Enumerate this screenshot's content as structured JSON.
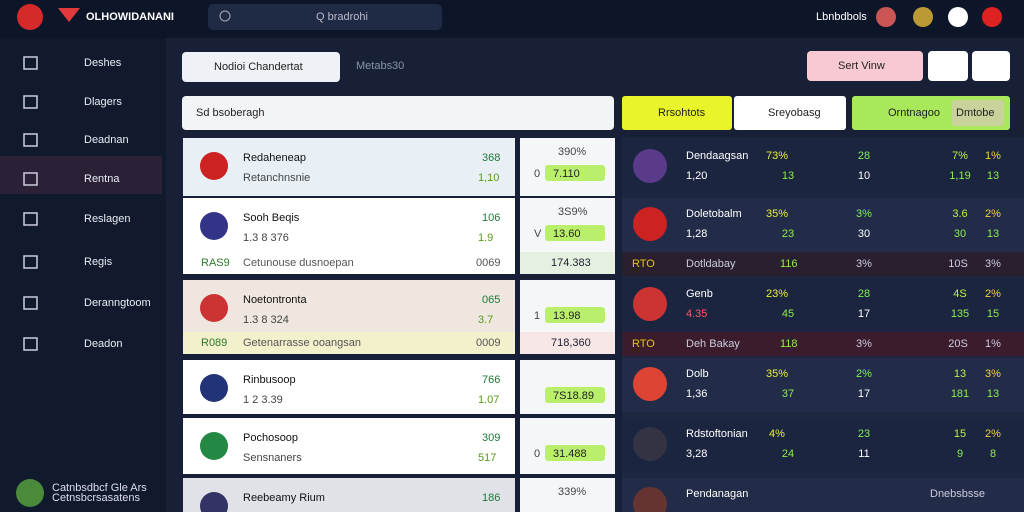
{
  "header": {
    "brand": "OLHOWIDANANI",
    "search": "Q bradrohi",
    "user": "Lbnbdbols"
  },
  "sidebar": {
    "items": [
      "Deshes",
      "Dlagers",
      "Deadnan",
      "Rentna",
      "Reslagen",
      "Regis",
      "Deranngtoom",
      "Deadon"
    ],
    "footer": [
      "Catnbsdbcf Gle Ars",
      "Cetnsbcrsasatens"
    ]
  },
  "toolbar": {
    "dropdown": "Nodioi Chandertat",
    "meta": "Metabs",
    "count": "30",
    "filter": "Sert Vinw"
  },
  "search_field": "Sd bsoberagh",
  "filters": [
    "Rrsohtots",
    "Sreyobasg",
    "Orntnagoo",
    "Dmtobe"
  ],
  "matches": [
    {
      "name": "Redaheneap",
      "sub": "Retanchnsnie",
      "top": "368",
      "bottom": "1,10",
      "mid_top": "390%",
      "mid_left": "0",
      "mid_badge": "7.110"
    },
    {
      "name": "Sooh Beqis",
      "sub": "1.3 8 376",
      "top": "106",
      "bottom": "1.9",
      "mid_top": "3S9%",
      "mid_left": "V",
      "mid_badge": "13.60",
      "strip": [
        "RAS9",
        "Cetunouse dusnoepan",
        "0069"
      ],
      "mid_strip": "174.383"
    },
    {
      "name": "Noetontronta",
      "sub": "1.3 8 324",
      "top": "065",
      "bottom": "3.7",
      "mid_top": "",
      "mid_left": "1",
      "mid_badge": "13.98",
      "strip": [
        "R089",
        "Getenarrasse ooangsan",
        "0009"
      ],
      "mid_strip": "718,360"
    },
    {
      "name": "Rinbusoop",
      "sub": "1 2 3.39",
      "top": "766",
      "bottom": "1.07",
      "mid_top": "",
      "mid_left": "",
      "mid_badge": "7S18.89"
    },
    {
      "name": "Pochosoop",
      "sub": "Sensnaners",
      "top": "309",
      "bottom": "517",
      "mid_top": "",
      "mid_left": "0",
      "mid_badge": "31.488"
    },
    {
      "name": "Reebeamy Rium",
      "sub": "",
      "top": "186",
      "bottom": "",
      "mid_top": "339%",
      "mid_left": "",
      "mid_badge": ""
    }
  ],
  "standings": [
    {
      "name": "Dendaagsan",
      "score": "1,20",
      "cols": [
        "73%",
        "28",
        "7%",
        "1%"
      ],
      "vals": [
        "13",
        "10",
        "1,19",
        "13"
      ]
    },
    {
      "name": "Doletobalm",
      "score": "1,28",
      "cols": [
        "35%",
        "3%",
        "3.6",
        "2%"
      ],
      "vals": [
        "23",
        "30",
        "30",
        "13"
      ],
      "strip": [
        "RTO",
        "Dotldabay",
        "116",
        "3%",
        "10S",
        "3%"
      ]
    },
    {
      "name": "Genb",
      "score": "4.35",
      "cols": [
        "23%",
        "28",
        "4S",
        "2%"
      ],
      "vals": [
        "45",
        "17",
        "135",
        "15"
      ],
      "strip": [
        "RTO",
        "Deh Bakay",
        "118",
        "3%",
        "20S",
        "1%"
      ]
    },
    {
      "name": "Dolb",
      "score": "1,36",
      "cols": [
        "35%",
        "2%",
        "13",
        "3%"
      ],
      "vals": [
        "37",
        "17",
        "181",
        "13"
      ]
    },
    {
      "name": "Rdstoftonian",
      "score": "3,28",
      "cols": [
        "4%",
        "23",
        "15",
        "2%"
      ],
      "vals": [
        "24",
        "11",
        "9",
        "8"
      ]
    },
    {
      "name": "Pendanagan",
      "score": "",
      "cols": [
        "",
        "",
        "",
        ""
      ],
      "vals": [
        "",
        "",
        "",
        ""
      ],
      "extra": "Dnebsbsse"
    }
  ]
}
